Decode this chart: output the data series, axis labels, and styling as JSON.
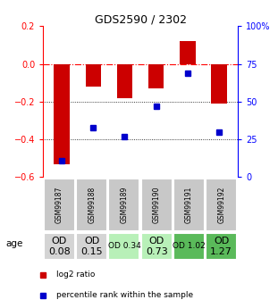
{
  "title": "GDS2590 / 2302",
  "samples": [
    "GSM99187",
    "GSM99188",
    "GSM99189",
    "GSM99190",
    "GSM99191",
    "GSM99192"
  ],
  "log2_ratio": [
    -0.53,
    -0.12,
    -0.18,
    -0.13,
    0.12,
    -0.21
  ],
  "percentile_rank": [
    11,
    33,
    27,
    47,
    69,
    30
  ],
  "bar_color": "#cc0000",
  "dot_color": "#0000cc",
  "ylim_left": [
    -0.6,
    0.2
  ],
  "ylim_right": [
    0,
    100
  ],
  "yticks_left": [
    -0.6,
    -0.4,
    -0.2,
    0.0,
    0.2
  ],
  "yticks_right": [
    0,
    25,
    50,
    75,
    100
  ],
  "ytick_labels_right": [
    "0",
    "25",
    "50",
    "75",
    "100%"
  ],
  "hline_y": 0.0,
  "dotted_lines": [
    -0.2,
    -0.4
  ],
  "row_labels": [
    "OD\n0.08",
    "OD\n0.15",
    "OD 0.34",
    "OD\n0.73",
    "OD 1.02",
    "OD\n1.27"
  ],
  "row_fontsize": [
    8,
    8,
    6.5,
    8,
    6.5,
    8
  ],
  "row_bg_colors": [
    "#d4d4d4",
    "#d4d4d4",
    "#b8f0b8",
    "#b8f0b8",
    "#5aba5a",
    "#5aba5a"
  ],
  "sample_bg_color": "#c8c8c8",
  "age_label": "age",
  "legend_items": [
    {
      "color": "#cc0000",
      "label": "log2 ratio"
    },
    {
      "color": "#0000cc",
      "label": "percentile rank within the sample"
    }
  ],
  "bar_width": 0.5
}
